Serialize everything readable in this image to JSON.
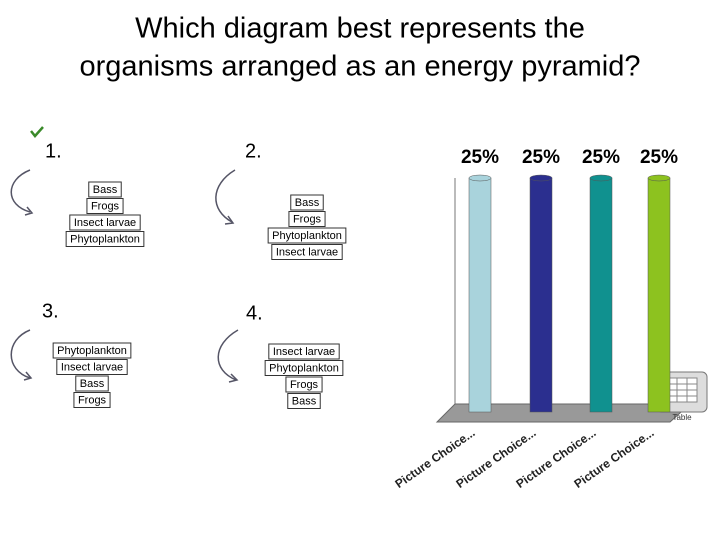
{
  "title_line_1": "Which diagram best represents the",
  "title_line_2": "organisms arranged as an energy pyramid?",
  "options": [
    {
      "label": "1.",
      "layers": [
        "Bass",
        "Frogs",
        "Insect larvae",
        "Phytoplankton"
      ]
    },
    {
      "label": "2.",
      "layers": [
        "Bass",
        "Frogs",
        "Phytoplankton",
        "Insect larvae"
      ]
    },
    {
      "label": "3.",
      "layers": [
        "Phytoplankton",
        "Insect larvae",
        "Bass",
        "Frogs"
      ]
    },
    {
      "label": "4.",
      "layers": [
        "Insect larvae",
        "Phytoplankton",
        "Frogs",
        "Bass"
      ]
    }
  ],
  "chart_data": {
    "type": "bar",
    "categories": [
      "Picture Choice...",
      "Picture Choice...",
      "Picture Choice...",
      "Picture Choice..."
    ],
    "values": [
      25,
      25,
      25,
      25
    ],
    "value_labels": [
      "25%",
      "25%",
      "25%",
      "25%"
    ],
    "colors": [
      "#a9d3dc",
      "#2b2f8f",
      "#10918f",
      "#8dc21f"
    ]
  },
  "table_icon_label": "Table"
}
